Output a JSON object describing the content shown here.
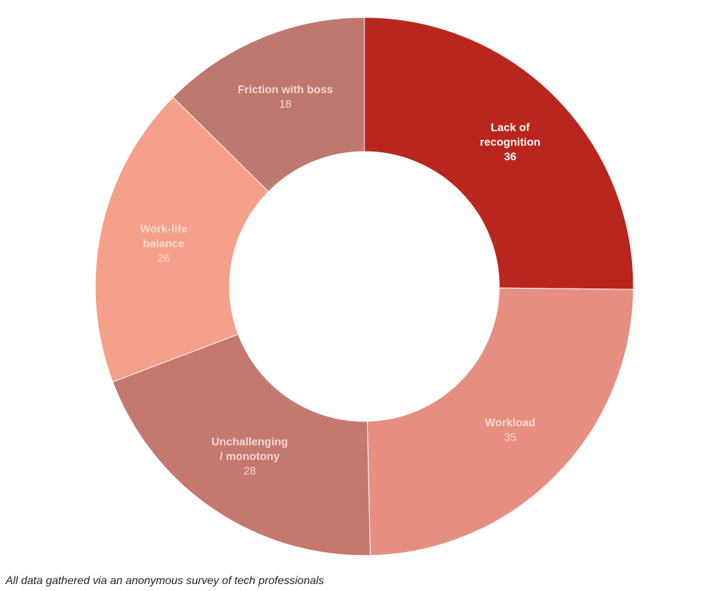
{
  "chart_data": {
    "type": "donut",
    "categories": [
      "Lack of\nrecognition",
      "Workload",
      "Unchallenging\n/ monotony",
      "Work-life\nbalance",
      "Friction with boss"
    ],
    "values": [
      36,
      35,
      28,
      26,
      18
    ],
    "colors": [
      "#b8261d",
      "#e68f80",
      "#c47870",
      "#f4a08a",
      "#bd7870"
    ],
    "label_colors": [
      "#ffffff",
      "#f8d8d0",
      "#f8d8d0",
      "#f8d8d0",
      "#f8d8d0"
    ],
    "note": "All data gathered via an anonymous survey of tech professionals"
  }
}
